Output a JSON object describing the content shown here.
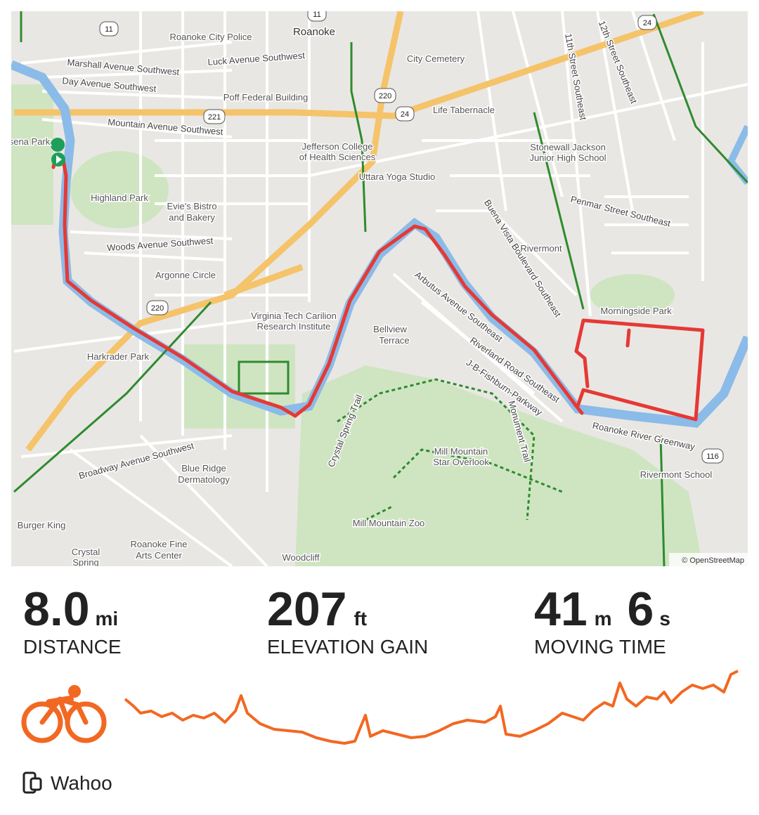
{
  "map": {
    "labels": [
      "Roanoke",
      "Roanoke City Police",
      "Luck Avenue Southwest",
      "Marshall Avenue Southwest",
      "Day Avenue Southwest",
      "Poff Federal Building",
      "City Cemetery",
      "Life Tabernacle",
      "Mountain Avenue Southwest",
      "Jefferson College",
      "of Health Sciences",
      "Uttara Yoga Studio",
      "Highland Park",
      "Evie's Bistro",
      "and Bakery",
      "Woods Avenue Southwest",
      "Argonne Circle",
      "Virginia Tech Carilion",
      "Research Institute",
      "Bellview",
      "Terrace",
      "Arbutus Avenue Southeast",
      "Riverland Road Southeast",
      "Harkrader Park",
      "Stonewall Jackson",
      "Junior High School",
      "Rivermont",
      "Penmar Street Southeast",
      "Morningside Park",
      "Roanoke River Greenway",
      "Rivermont School",
      "Mill Mountain",
      "Star Overlook",
      "Mill Mountain Zoo",
      "Crystal Spring Trail",
      "Blue Ridge",
      "Dermatology",
      "Broadway Avenue Southwest",
      "Burger King",
      "Roanoke Fine",
      "Arts Center",
      "Woodcliff",
      "Crystal",
      "Spring",
      "11th Street Southeast",
      "12th Street Southeast",
      "Buena Vista Boulevard Southeast",
      "J-B-Fishburn-Parkway",
      "Monument Trail",
      "sena Park"
    ],
    "shields": [
      "11",
      "11",
      "221",
      "220",
      "24",
      "220",
      "24",
      "116"
    ],
    "attribution": "© OpenStreetMap"
  },
  "stats": [
    {
      "parts": [
        {
          "value": "8.0",
          "unit": "mi"
        }
      ],
      "label": "DISTANCE"
    },
    {
      "parts": [
        {
          "value": "207",
          "unit": "ft"
        }
      ],
      "label": "ELEVATION GAIN"
    },
    {
      "parts": [
        {
          "value": "41",
          "unit": "m"
        },
        {
          "value": "6",
          "unit": "s"
        }
      ],
      "label": "MOVING TIME"
    }
  ],
  "device": "Wahoo"
}
